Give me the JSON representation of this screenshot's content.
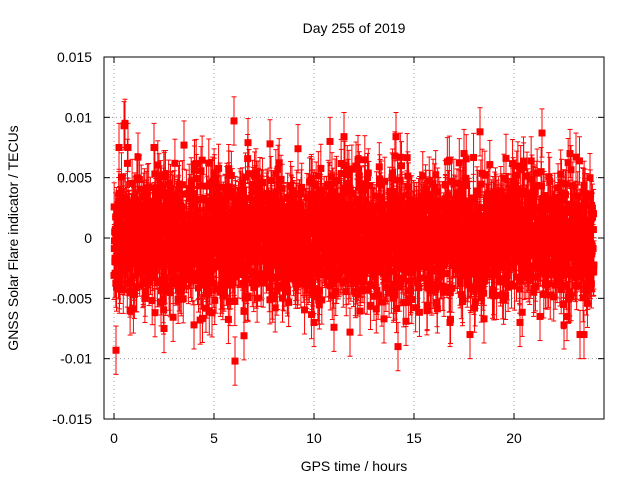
{
  "chart_data": {
    "type": "scatter",
    "title": "Day 255 of 2019",
    "xlabel": "GPS time / hours",
    "ylabel": "GNSS Solar Flare indicator / TECUs",
    "xlim": [
      -0.5,
      24.5
    ],
    "ylim": [
      -0.015,
      0.015
    ],
    "x_ticks": [
      0,
      5,
      10,
      15,
      20
    ],
    "x_tick_labels": [
      "0",
      "5",
      "10",
      "15",
      "20"
    ],
    "y_ticks": [
      -0.015,
      -0.01,
      -0.005,
      0,
      0.005,
      0.01,
      0.015
    ],
    "y_tick_labels": [
      "-0.015",
      "-0.01",
      "-0.005",
      "0",
      "0.005",
      "0.01",
      "0.015"
    ],
    "grid": true,
    "marker": "square",
    "error_bars": true,
    "error_bar_half_width": 0.002,
    "series_color": "#ff0000",
    "notable_points": [
      {
        "x": 0.1,
        "y": -0.0093
      },
      {
        "x": 0.25,
        "y": 0.0075
      },
      {
        "x": 0.5,
        "y": 0.0093
      },
      {
        "x": 0.55,
        "y": 0.0095
      },
      {
        "x": 0.7,
        "y": 0.0075
      },
      {
        "x": 1.2,
        "y": 0.0067
      },
      {
        "x": 2.0,
        "y": 0.0075
      },
      {
        "x": 3.5,
        "y": 0.0077
      },
      {
        "x": 2.5,
        "y": -0.0075
      },
      {
        "x": 4.0,
        "y": -0.0072
      },
      {
        "x": 4.9,
        "y": -0.0062
      },
      {
        "x": 6.0,
        "y": 0.0097
      },
      {
        "x": 6.05,
        "y": -0.0102
      },
      {
        "x": 6.5,
        "y": -0.0081
      },
      {
        "x": 6.7,
        "y": 0.0079
      },
      {
        "x": 7.8,
        "y": 0.0078
      },
      {
        "x": 9.2,
        "y": 0.0074
      },
      {
        "x": 10.0,
        "y": -0.007
      },
      {
        "x": 10.8,
        "y": 0.008
      },
      {
        "x": 11.0,
        "y": -0.0074
      },
      {
        "x": 11.5,
        "y": 0.0084
      },
      {
        "x": 11.8,
        "y": -0.0078
      },
      {
        "x": 12.2,
        "y": 0.0065
      },
      {
        "x": 13.5,
        "y": -0.0067
      },
      {
        "x": 14.1,
        "y": 0.0084
      },
      {
        "x": 14.2,
        "y": -0.009
      },
      {
        "x": 14.6,
        "y": -0.0069
      },
      {
        "x": 16.8,
        "y": -0.007
      },
      {
        "x": 17.5,
        "y": 0.007
      },
      {
        "x": 17.8,
        "y": -0.008
      },
      {
        "x": 18.3,
        "y": 0.0088
      },
      {
        "x": 18.5,
        "y": -0.0067
      },
      {
        "x": 19.6,
        "y": 0.0066
      },
      {
        "x": 20.3,
        "y": -0.007
      },
      {
        "x": 21.3,
        "y": -0.0065
      },
      {
        "x": 21.4,
        "y": 0.0087
      },
      {
        "x": 22.5,
        "y": -0.0072
      },
      {
        "x": 22.8,
        "y": 0.007
      },
      {
        "x": 23.1,
        "y": 0.0067
      },
      {
        "x": 23.3,
        "y": -0.008
      },
      {
        "x": 23.5,
        "y": -0.008
      },
      {
        "x": 23.8,
        "y": 0.005
      }
    ],
    "bulk_distribution": {
      "x_range": [
        0,
        24
      ],
      "point_spacing_hours": 0.0083,
      "y_std": 0.0025,
      "y_clip": 0.0068,
      "seed": 255
    }
  }
}
